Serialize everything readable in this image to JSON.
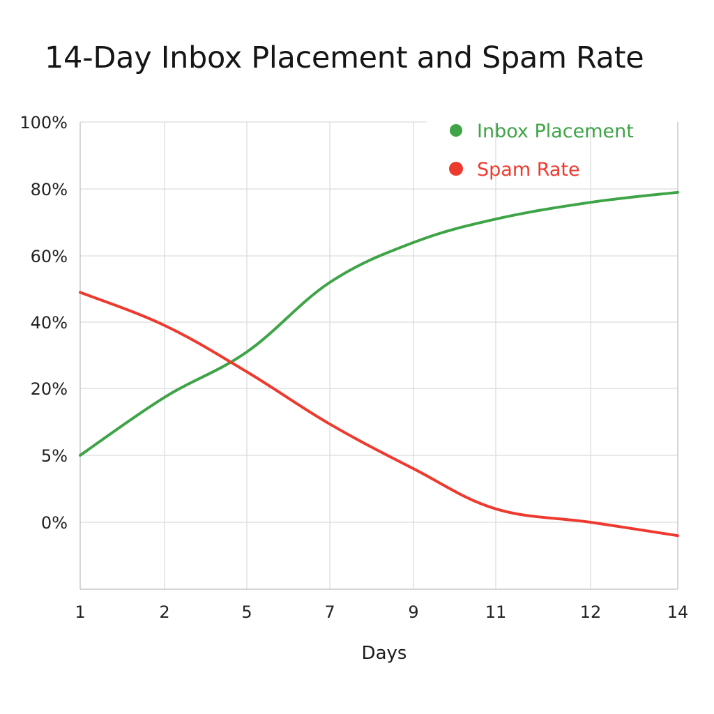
{
  "chart_data": {
    "type": "line",
    "title": "14-Day Inbox Placement and Spam Rate",
    "xlabel": "Days",
    "ylabel": "",
    "x_ticks": [
      "1",
      "2",
      "5",
      "7",
      "9",
      "11",
      "12",
      "14"
    ],
    "y_ticks": [
      "100%",
      "80%",
      "60%",
      "40%",
      "20%",
      "5%",
      "0%"
    ],
    "grid": true,
    "legend_position": "top-right",
    "series": [
      {
        "name": "Inbox Placement",
        "color": "#3ea447",
        "points": [
          [
            "1",
            "5%"
          ],
          [
            "2",
            "18%"
          ],
          [
            "5",
            "31%"
          ],
          [
            "7",
            "52%"
          ],
          [
            "9",
            "64%"
          ],
          [
            "11",
            "71%"
          ],
          [
            "12",
            "76%"
          ],
          [
            "14",
            "79%"
          ]
        ]
      },
      {
        "name": "Spam Rate",
        "color": "#ee3a2e",
        "points": [
          [
            "1",
            "49%"
          ],
          [
            "2",
            "39%"
          ],
          [
            "5",
            "25%"
          ],
          [
            "7",
            "12%"
          ],
          [
            "9",
            "4%"
          ],
          [
            "11",
            "1%"
          ],
          [
            "12",
            "0%"
          ],
          [
            "14",
            "-1%"
          ]
        ]
      }
    ]
  }
}
